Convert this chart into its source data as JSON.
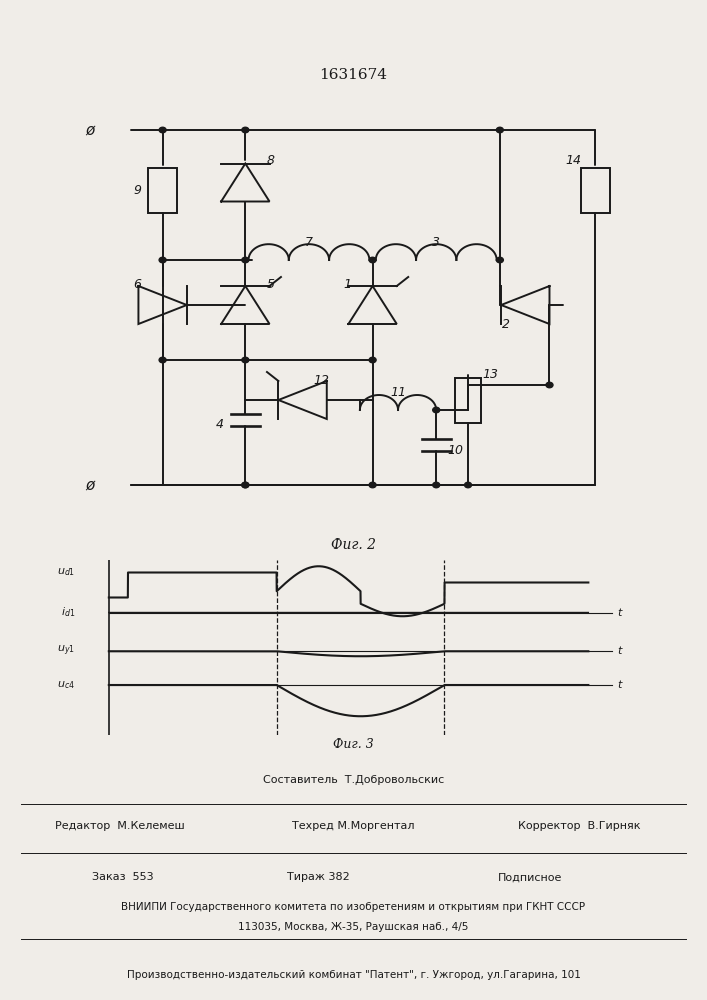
{
  "title": "1631674",
  "fig2_label": "Фиг. 2",
  "fig3_label": "Фиг. 3",
  "bg_color": "#f0ede8",
  "line_color": "#1a1a1a",
  "footer": {
    "row1_center": "Составитель  Т.Добровольскис",
    "row2_left": "Редактор  М.Келемеш",
    "row2_center": "Техред М.Моргентал",
    "row2_right": "Корректор  В.Гирняк",
    "row3_left": "Заказ  553",
    "row3_center": "Тираж 382",
    "row3_right": "Подписное",
    "row4": "ВНИИПИ Государственного комитета по изобретениям и открытиям при ГКНТ СССР",
    "row5": "113035, Москва, Ж-35, Раушская наб., 4/5",
    "row6": "Производственно-издательский комбинат \"Патент\", г. Ужгород, ул.Гагарина, 101"
  }
}
